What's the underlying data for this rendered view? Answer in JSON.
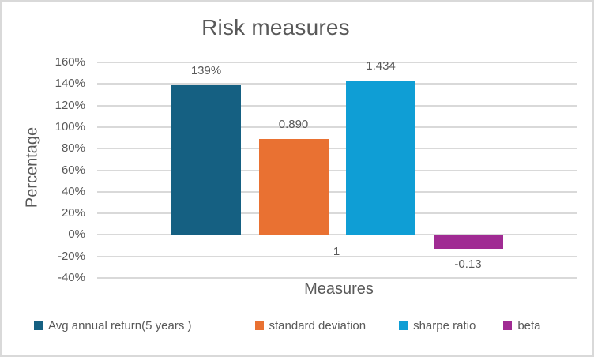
{
  "chart_data": {
    "type": "bar",
    "title": "Risk measures",
    "xlabel": "Measures",
    "ylabel": "Percentage",
    "ylim": [
      -40,
      160
    ],
    "ytick_step": 20,
    "ytick_suffix": "%",
    "ytick_labels": [
      "160%",
      "140%",
      "120%",
      "100%",
      "80%",
      "60%",
      "40%",
      "20%",
      "0%",
      "-20%",
      "-40%"
    ],
    "categories": [
      "1"
    ],
    "series": [
      {
        "name": "Avg annual return(5 years )",
        "value_pct": 139,
        "label": "139%",
        "color": "#156082"
      },
      {
        "name": "standard deviation",
        "value_pct": 89,
        "label": "0.890",
        "color": "#E97132"
      },
      {
        "name": "sharpe ratio",
        "value_pct": 143.4,
        "label": "1.434",
        "color": "#0F9ED5"
      },
      {
        "name": "beta",
        "value_pct": -13,
        "label": "-0.13",
        "color": "#A02B93"
      }
    ],
    "grid": true,
    "legend_position": "bottom",
    "colors": {
      "text": "#595959",
      "gridline": "#D9D9D9",
      "border": "#D9D9D9",
      "background": "#FFFFFF"
    }
  }
}
